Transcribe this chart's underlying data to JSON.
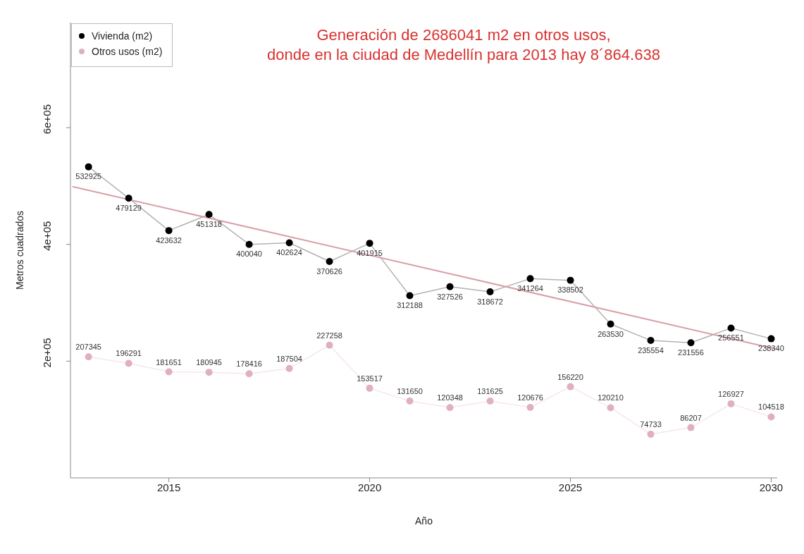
{
  "chart_data": {
    "type": "line",
    "title": "Generación de 2686041  m2 en otros usos,\ndonde en la ciudad de Medellín para 2013 hay 8´864.638",
    "xlabel": "Año",
    "ylabel": "Metros cuadrados",
    "x": [
      2013,
      2014,
      2015,
      2016,
      2017,
      2018,
      2019,
      2020,
      2021,
      2022,
      2023,
      2024,
      2025,
      2026,
      2027,
      2028,
      2029,
      2030
    ],
    "series": [
      {
        "name": "Vivienda (m2)",
        "color": "#000000",
        "values": [
          532925,
          479129,
          423632,
          451318,
          400040,
          402624,
          370626,
          401915,
          312188,
          327526,
          318672,
          341264,
          338502,
          263530,
          235554,
          231556,
          256551,
          238340
        ],
        "value_labels": [
          "532925",
          "479129",
          "423632",
          "451318",
          "400040",
          "402624",
          "370626",
          "401915",
          "312188",
          "327526",
          "318672",
          "341264",
          "338502",
          "263530",
          "235554",
          "231556",
          "256551",
          "238340"
        ]
      },
      {
        "name": "Otros usos (m2)",
        "color": "#e0b0bc",
        "values": [
          207345,
          196291,
          181651,
          180945,
          178416,
          187504,
          227258,
          153517,
          131650,
          120348,
          131625,
          120676,
          156220,
          120210,
          74733,
          86207,
          126927,
          104518
        ],
        "value_labels": [
          "207345",
          "196291",
          "181651",
          "180945",
          "178416",
          "187504",
          "227258",
          "153517",
          "131650",
          "120348",
          "131625",
          "120676",
          "156220",
          "120210",
          "74733",
          "86207",
          "126927",
          "104518"
        ]
      },
      {
        "type": "line",
        "color": "#d8a0a8",
        "marker": "none",
        "x": [
          2012.6,
          2030.1
        ],
        "values": [
          499000,
          221000
        ]
      }
    ],
    "xlim": [
      2012.55,
      2030.15
    ],
    "xticks": [
      2015,
      2020,
      2025,
      2030
    ],
    "ylim": [
      0,
      780000
    ],
    "yticks": [
      {
        "value": 200000,
        "label": "2e+05"
      },
      {
        "value": 400000,
        "label": "4e+05"
      },
      {
        "value": 600000,
        "label": "6e+05"
      }
    ],
    "marker": "circle",
    "legend": "top left",
    "grid": false
  }
}
